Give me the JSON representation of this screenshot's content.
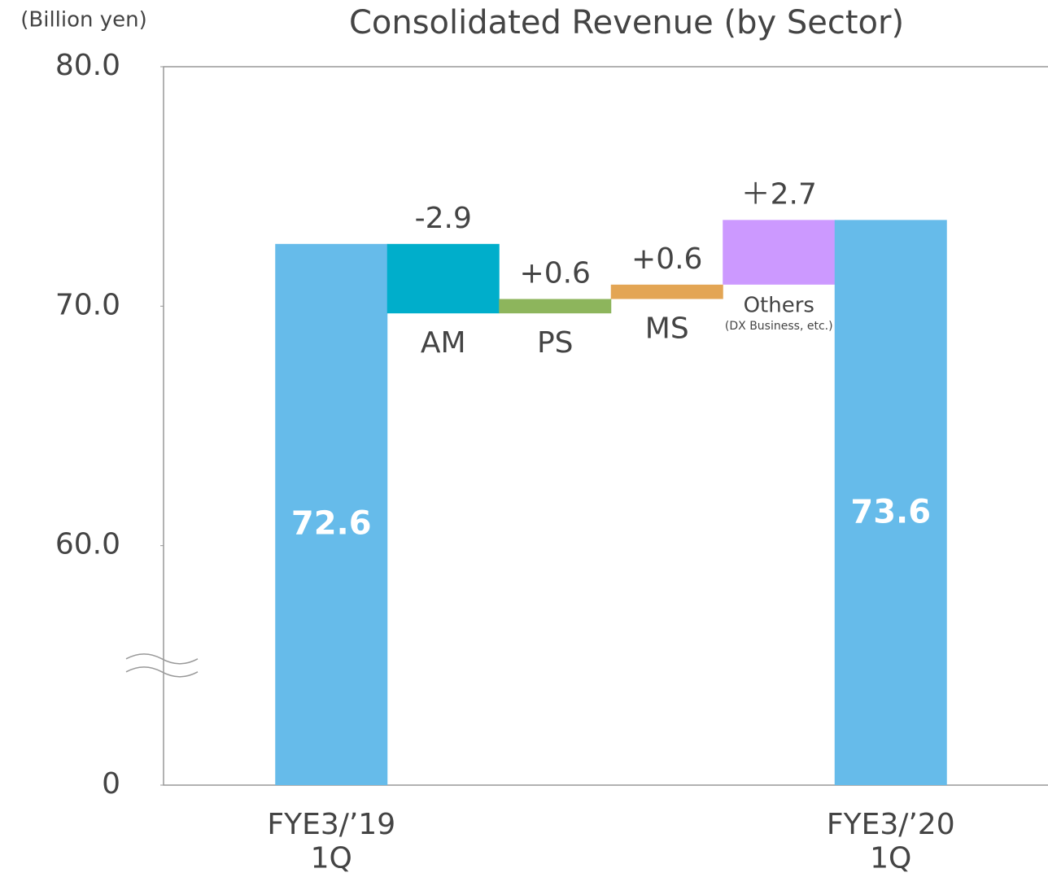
{
  "chart_data": {
    "type": "waterfall",
    "title": "Consolidated Revenue (by Sector)",
    "y_label": "(Billion yen)",
    "categories": [
      "FYE3/’19\n1Q",
      "AM",
      "PS",
      "MS",
      "Others",
      "FYE3/’20\n1Q"
    ],
    "values": [
      72.6,
      -2.9,
      0.6,
      0.6,
      2.7,
      73.6
    ],
    "value_labels": [
      "72.6",
      "-2.9",
      "+0.6",
      "+0.6",
      "＋2.7",
      "73.6"
    ],
    "is_total": [
      true,
      false,
      false,
      false,
      false,
      true
    ],
    "colors": [
      "#66bbea",
      "#00aecb",
      "#8db55c",
      "#e3a554",
      "#cc99ff",
      "#66bbea"
    ],
    "category_note": {
      "index": 4,
      "text": "(DX Business, etc.)"
    },
    "ylim": [
      0,
      80
    ],
    "yticks": [
      0,
      {
        "value": 60,
        "label": "60.0"
      },
      {
        "value": 70,
        "label": "70.0"
      },
      {
        "value": 80,
        "label": "80.0"
      }
    ],
    "broken_axis": true
  }
}
